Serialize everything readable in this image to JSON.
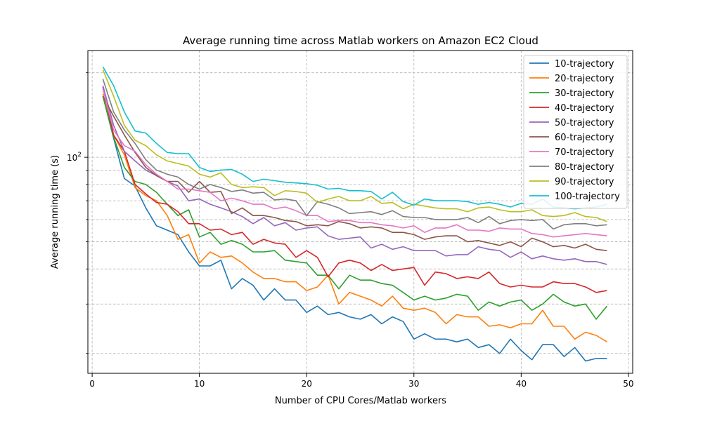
{
  "chart_data": {
    "type": "line",
    "title": "Average running time across Matlab workers on Amazon EC2 Cloud",
    "xlabel": "Number of CPU Cores/Matlab workers",
    "ylabel": "Average running time (s)",
    "xlim": [
      -0.4,
      50.4
    ],
    "ylim": [
      17,
      240
    ],
    "yscale": "log",
    "x_ticks": [
      0,
      10,
      20,
      30,
      40,
      50
    ],
    "y_ticks": [
      {
        "value": 100,
        "label": "10^2"
      }
    ],
    "y_minor_ticks": [
      20,
      30,
      40,
      50,
      60,
      70,
      80,
      90,
      200
    ],
    "grid": true,
    "legend_position": "top-right",
    "x": [
      1,
      2,
      3,
      4,
      5,
      6,
      7,
      8,
      9,
      10,
      11,
      12,
      13,
      14,
      15,
      16,
      17,
      18,
      19,
      20,
      21,
      22,
      23,
      24,
      25,
      26,
      27,
      28,
      29,
      30,
      31,
      32,
      33,
      34,
      35,
      36,
      37,
      38,
      39,
      40,
      41,
      42,
      43,
      44,
      45,
      46,
      47,
      48
    ],
    "series": [
      {
        "name": "10-trajectory",
        "color": "#1f77b4",
        "values": [
          165,
          117,
          84,
          79,
          66,
          57,
          55,
          53,
          46,
          41,
          41,
          43,
          34,
          37,
          35,
          31,
          34,
          31,
          31,
          28,
          29.5,
          27.5,
          28,
          27,
          26.5,
          27.5,
          25.5,
          27,
          26,
          22.5,
          23.5,
          22.5,
          22.5,
          22,
          22.5,
          21,
          21.5,
          20,
          22.5,
          20.5,
          19,
          21.5,
          21.5,
          19.5,
          21,
          18.8,
          19.2,
          19.2
        ]
      },
      {
        "name": "20-trajectory",
        "color": "#ff7f0e",
        "values": [
          168,
          120,
          102,
          78,
          73,
          70,
          62,
          51,
          53,
          42,
          46,
          44,
          44.5,
          42,
          39,
          37,
          37,
          36,
          36,
          33.5,
          34.5,
          38,
          30,
          33,
          32,
          31,
          29.5,
          32,
          29,
          28.5,
          29,
          28,
          25.5,
          27.5,
          27,
          27,
          25,
          25.3,
          24.7,
          25.5,
          25.5,
          28.5,
          25,
          25,
          22.5,
          23.8,
          23.2,
          22
        ]
      },
      {
        "name": "30-trajectory",
        "color": "#2ca02c",
        "values": [
          165,
          118,
          92,
          82,
          80,
          75,
          68,
          62,
          65,
          52,
          54,
          49,
          50.5,
          49,
          46,
          46,
          46.5,
          43,
          42.5,
          42,
          38,
          38,
          34,
          38,
          36.5,
          36.5,
          35.5,
          35,
          33,
          31,
          32,
          31,
          31.5,
          32.5,
          32,
          28.5,
          30.5,
          29.5,
          30.5,
          31,
          28.5,
          30,
          32.5,
          30.5,
          29.5,
          30,
          26.5,
          29.5
        ]
      },
      {
        "name": "40-trajectory",
        "color": "#d62728",
        "values": [
          178,
          120,
          105,
          80,
          74,
          69,
          68,
          64,
          58,
          58,
          55,
          55.5,
          53,
          54,
          49,
          51,
          49.5,
          49,
          44,
          46.5,
          44,
          37.5,
          42,
          43,
          42,
          39.5,
          41.5,
          39.5,
          40,
          40.5,
          35,
          39,
          38.5,
          37,
          37.5,
          37,
          39,
          35.5,
          34.5,
          35,
          34.5,
          34.5,
          36,
          35.5,
          35.5,
          34.5,
          33,
          33.5
        ]
      },
      {
        "name": "50-trajectory",
        "color": "#9467bd",
        "values": [
          180,
          130,
          105,
          97,
          90,
          86,
          82,
          79,
          70,
          71,
          68,
          66,
          64,
          61.5,
          58,
          61,
          57,
          58.5,
          55,
          56,
          56.5,
          52.5,
          51,
          51.5,
          52,
          47.5,
          49,
          47,
          48,
          46.5,
          46.5,
          46.5,
          44.5,
          45,
          45,
          48,
          47,
          46.5,
          44,
          46,
          43.5,
          44.5,
          43.5,
          43,
          43.5,
          42.5,
          42.5,
          41.5
        ]
      },
      {
        "name": "60-trajectory",
        "color": "#8c564b",
        "values": [
          165,
          140,
          120,
          104,
          92,
          86,
          82,
          82,
          75,
          82,
          75,
          75.5,
          63,
          66,
          62,
          62,
          61,
          59.5,
          59,
          57,
          57.5,
          57,
          59,
          58,
          56,
          56.5,
          56,
          54,
          54,
          53,
          51,
          52,
          52.5,
          52.5,
          50,
          50.5,
          49.5,
          48.5,
          50,
          48,
          51.5,
          50,
          48,
          48.5,
          47.5,
          49,
          47,
          46.5
        ]
      },
      {
        "name": "70-trajectory",
        "color": "#e377c2",
        "values": [
          175,
          125,
          110,
          105,
          94,
          87,
          82,
          77,
          77,
          76,
          75,
          70,
          71.5,
          70,
          68,
          68,
          65.5,
          66.5,
          64.5,
          62,
          62,
          59,
          59.5,
          59.5,
          58.5,
          58.5,
          57.5,
          57,
          56,
          57,
          54,
          56,
          56,
          57.5,
          55,
          55,
          54.5,
          56,
          55.5,
          55.5,
          53.5,
          53,
          52,
          52.5,
          53,
          53.5,
          53,
          52.5
        ]
      },
      {
        "name": "80-trajectory",
        "color": "#7f7f7f",
        "values": [
          190,
          145,
          125,
          112,
          98,
          90,
          87,
          85,
          80,
          77,
          80,
          78,
          75.5,
          76.5,
          74.5,
          75,
          70.5,
          71,
          70,
          62,
          69.5,
          68,
          66,
          63,
          63.5,
          64,
          62.5,
          64.5,
          61.5,
          61,
          61,
          60,
          60,
          60,
          61,
          58.5,
          61.5,
          58,
          59.5,
          60,
          59.5,
          60,
          55.5,
          57.5,
          58,
          58,
          57,
          57.5
        ]
      },
      {
        "name": "90-trajectory",
        "color": "#bcbd22",
        "values": [
          205,
          165,
          130,
          115,
          110,
          102,
          97,
          95,
          93,
          87,
          85,
          88,
          80,
          78,
          78.5,
          78,
          73,
          76,
          75.5,
          74.5,
          69,
          71,
          72.5,
          70,
          70,
          72.5,
          68.5,
          69,
          65.5,
          68,
          67,
          66,
          65.5,
          65.5,
          64,
          66,
          66.5,
          65,
          64,
          64,
          65,
          62,
          61.5,
          62,
          63.5,
          61.5,
          61,
          59
        ]
      },
      {
        "name": "100-trajectory",
        "color": "#17becf",
        "values": [
          210,
          180,
          145,
          124,
          122,
          112,
          104,
          103,
          103,
          92,
          89,
          90,
          90.5,
          87,
          82,
          83.5,
          82.5,
          81.5,
          81,
          80.5,
          79.5,
          77,
          77.5,
          76,
          76,
          75.5,
          71,
          75,
          69.5,
          67.5,
          71,
          70,
          70,
          70,
          69.5,
          68,
          69,
          68,
          66.5,
          68.5,
          68,
          71,
          66.5,
          66,
          65.5,
          66,
          66.5,
          68
        ]
      }
    ]
  }
}
